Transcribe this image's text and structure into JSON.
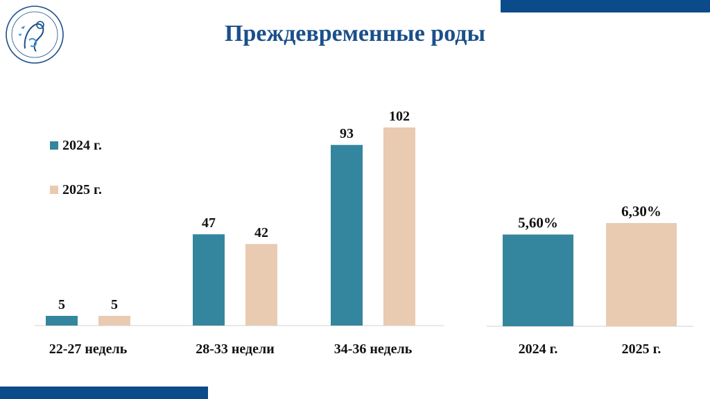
{
  "title": "Преждевременные роды",
  "colors": {
    "series_2024": "#34869e",
    "series_2025": "#e8cbb1",
    "accent": "#0b4a8b",
    "title": "#1a4f8a"
  },
  "logo": {
    "icon": "mother-and-child-emblem-icon"
  },
  "legend": {
    "items": [
      "2024 г.",
      "2025 г."
    ]
  },
  "chart_data": [
    {
      "type": "bar",
      "categories": [
        "22-27 недель",
        "28-33 недели",
        "34-36 недель"
      ],
      "series": [
        {
          "name": "2024 г.",
          "values": [
            5,
            47,
            93
          ]
        },
        {
          "name": "2025 г.",
          "values": [
            5,
            42,
            102
          ]
        }
      ],
      "data_labels": true,
      "legend_position": "left"
    },
    {
      "type": "bar",
      "categories": [
        "2024 г.",
        "2025 г."
      ],
      "values": [
        5.6,
        6.3
      ],
      "value_labels": [
        "5,60%",
        "6,30%"
      ],
      "data_labels": true
    }
  ]
}
